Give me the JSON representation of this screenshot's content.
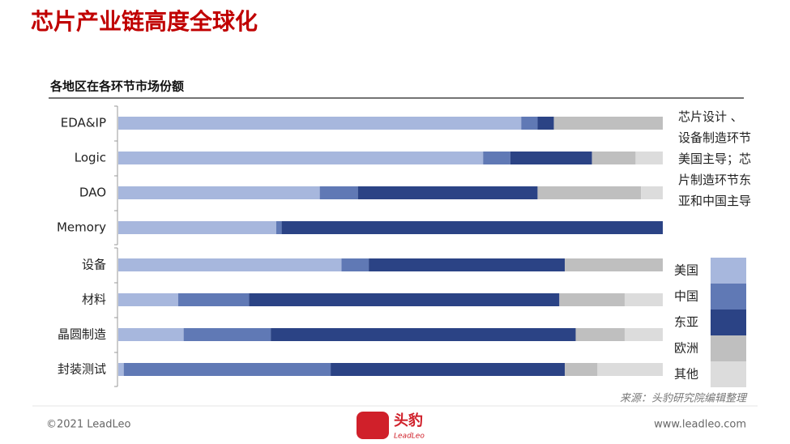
{
  "title": "芯片产业链高度全球化",
  "footer": {
    "copyright": "©2021 LeadLeo",
    "logo": "头豹",
    "logo_sub": "LeadLeo",
    "url": "www.leadleo.com"
  },
  "chart_data": {
    "type": "bar",
    "orientation": "horizontal",
    "stacked": true,
    "title": "各地区在各环节市场份额",
    "annotation": "芯片设计 、设备制造环节美国主导；芯片制造环节东亚和中国主导",
    "source": "来源：头豹研究院编辑整理",
    "categories": [
      "EDA&IP",
      "Logic",
      "DAO",
      "Memory",
      "设备",
      "材料",
      "晶圆制造",
      "封装测试"
    ],
    "xlim": [
      0,
      100
    ],
    "series": [
      {
        "name": "美国",
        "color": "#a7b7dd",
        "values": [
          74,
          67,
          37,
          29,
          41,
          11,
          12,
          1
        ]
      },
      {
        "name": "中国",
        "color": "#6079b5",
        "values": [
          3,
          5,
          7,
          1,
          5,
          13,
          16,
          38
        ]
      },
      {
        "name": "东亚",
        "color": "#2b4385",
        "values": [
          3,
          15,
          33,
          70,
          36,
          57,
          56,
          43
        ]
      },
      {
        "name": "欧洲",
        "color": "#bfbfbf",
        "values": [
          20,
          8,
          19,
          0,
          18,
          12,
          9,
          6
        ]
      },
      {
        "name": "其他",
        "color": "#dcdcdc",
        "values": [
          0,
          5,
          4,
          0,
          0,
          7,
          7,
          12
        ]
      }
    ],
    "legend": "right"
  }
}
